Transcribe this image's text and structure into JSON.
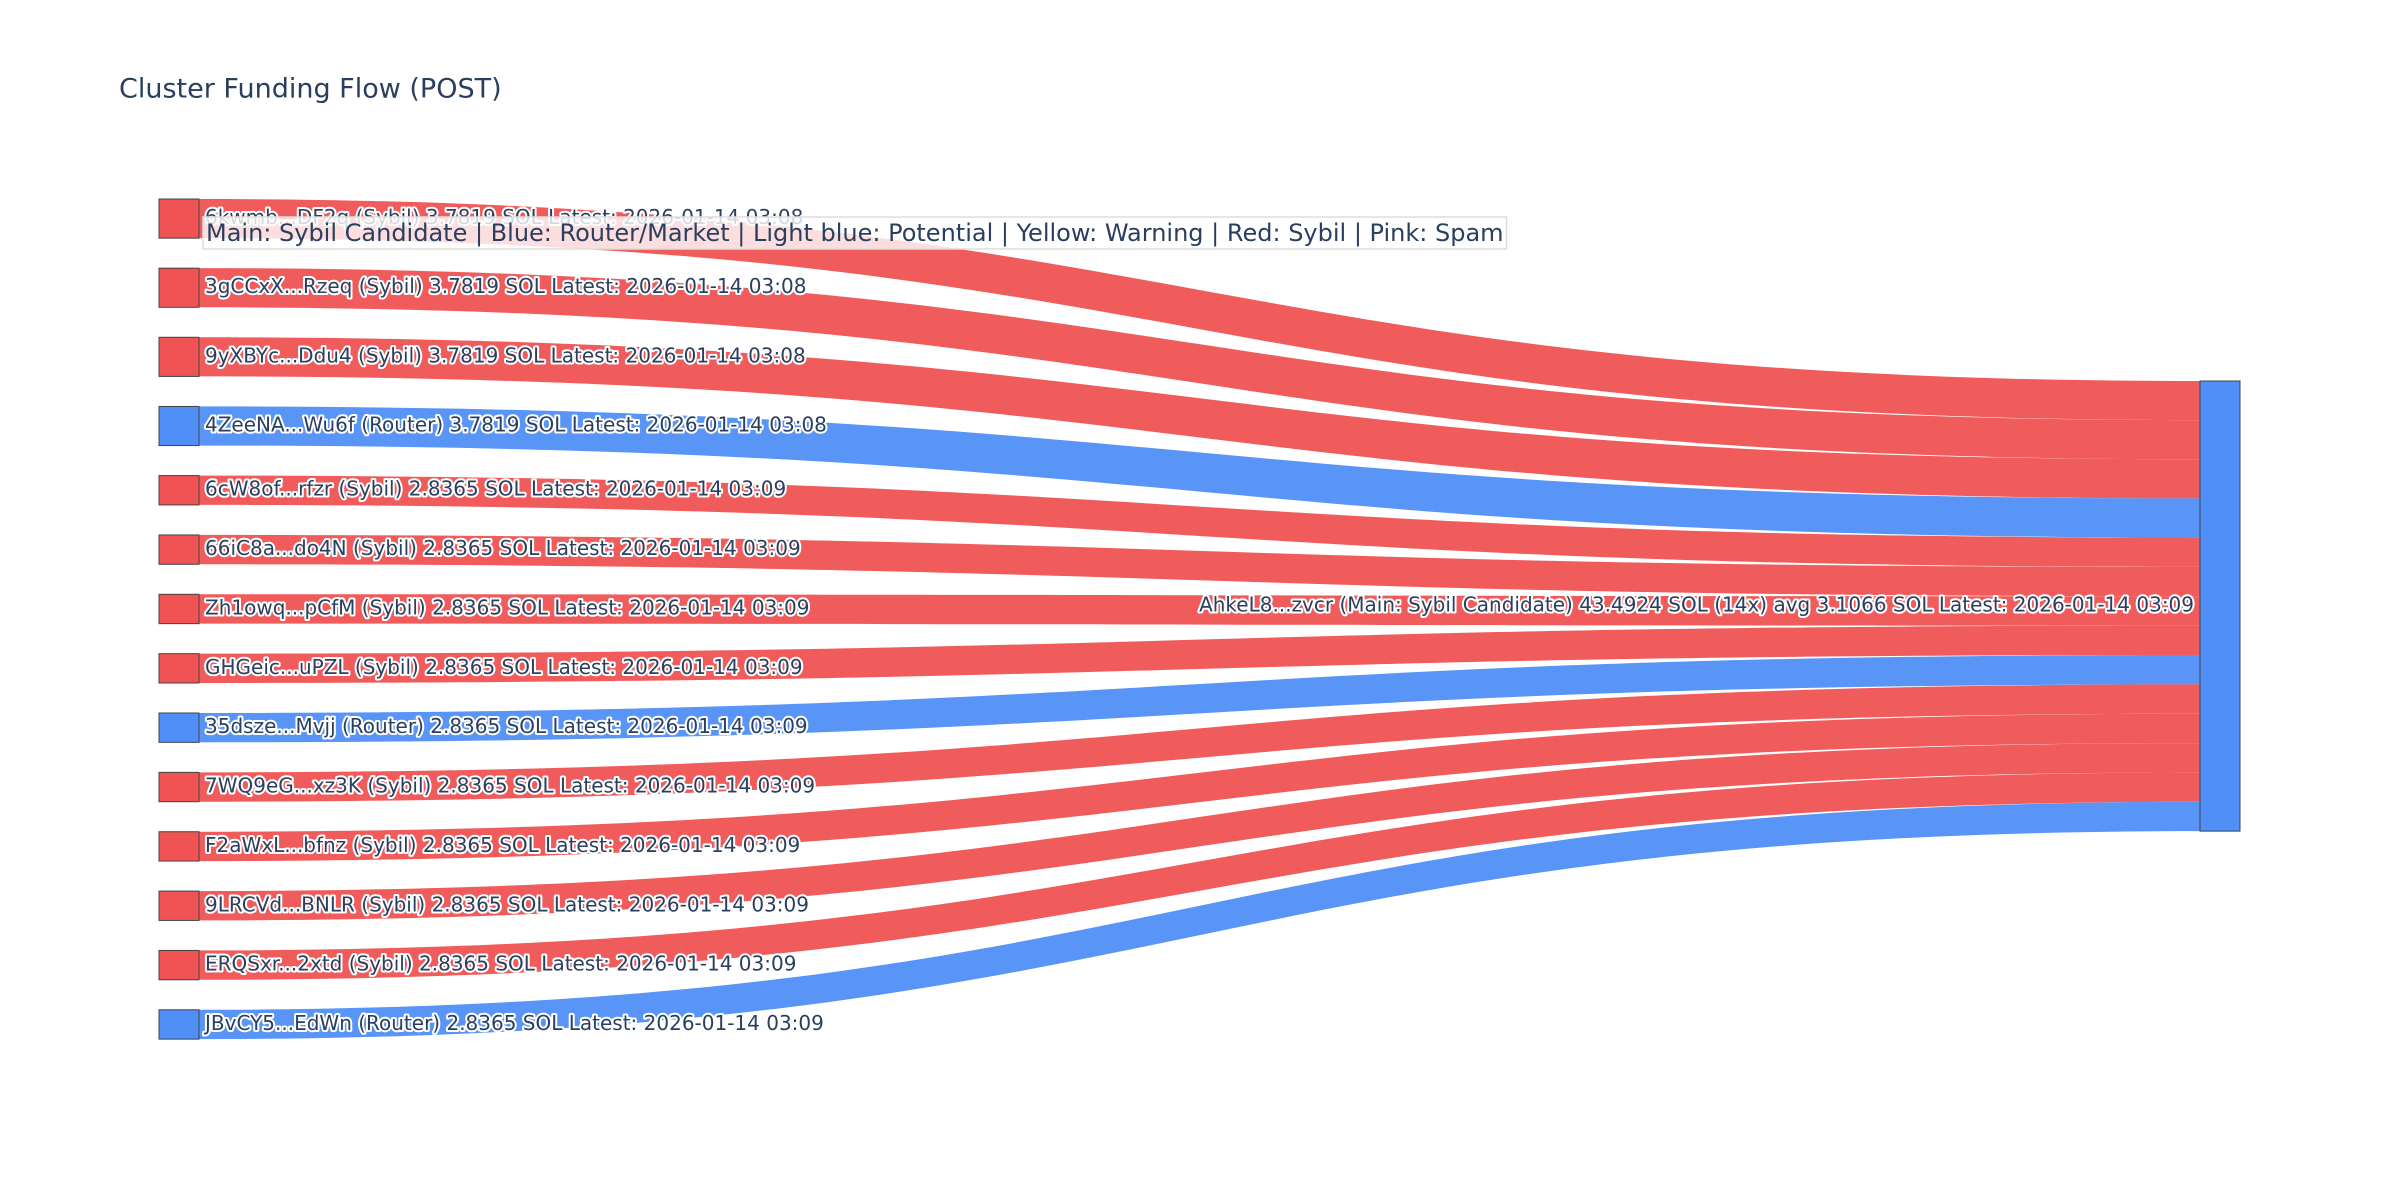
{
  "chart_data": {
    "type": "sankey",
    "title": "Cluster Funding Flow (POST)",
    "annotation": "Main: Sybil Candidate  |  Blue: Router/Market | Light blue: Potential | Yellow: Warning | Red: Sybil | Pink: Spam",
    "nodes": [
      {
        "label": "6kwmb...DF2q (Sybil) 3.7819 SOL Latest: 2026-01-14 03:08",
        "color": "#ef5353"
      },
      {
        "label": "3gCCxX...Rzeq (Sybil) 3.7819 SOL Latest: 2026-01-14 03:08",
        "color": "#ef5353"
      },
      {
        "label": "9yXBYc...Ddu4 (Sybil) 3.7819 SOL Latest: 2026-01-14 03:08",
        "color": "#ef5353"
      },
      {
        "label": "4ZeeNA...Wu6f (Router) 3.7819 SOL Latest: 2026-01-14 03:08",
        "color": "#4f8ff7"
      },
      {
        "label": "6cW8of...rfzr (Sybil) 2.8365 SOL Latest: 2026-01-14 03:09",
        "color": "#ef5353"
      },
      {
        "label": "66iC8a...do4N (Sybil) 2.8365 SOL Latest: 2026-01-14 03:09",
        "color": "#ef5353"
      },
      {
        "label": "Zh1owq...pCfM (Sybil) 2.8365 SOL Latest: 2026-01-14 03:09",
        "color": "#ef5353"
      },
      {
        "label": "GHGeic...uPZL (Sybil) 2.8365 SOL Latest: 2026-01-14 03:09",
        "color": "#ef5353"
      },
      {
        "label": "35dsze...Mvjj (Router) 2.8365 SOL Latest: 2026-01-14 03:09",
        "color": "#4f8ff7"
      },
      {
        "label": "7WQ9eG...xz3K (Sybil) 2.8365 SOL Latest: 2026-01-14 03:09",
        "color": "#ef5353"
      },
      {
        "label": "F2aWxL...bfnz (Sybil) 2.8365 SOL Latest: 2026-01-14 03:09",
        "color": "#ef5353"
      },
      {
        "label": "9LRCVd...BNLR (Sybil) 2.8365 SOL Latest: 2026-01-14 03:09",
        "color": "#ef5353"
      },
      {
        "label": "ERQSxr...2xtd (Sybil) 2.8365 SOL Latest: 2026-01-14 03:09",
        "color": "#ef5353"
      },
      {
        "label": "JBvCY5...EdWn (Router) 2.8365 SOL Latest: 2026-01-14 03:09",
        "color": "#4f8ff7"
      },
      {
        "label": "AhkeL8...zvcr (Main: Sybil Candidate) 43.4924 SOL (14x) avg 3.1066 SOL Latest: 2026-01-14 03:09",
        "color": "#4f8ff7"
      }
    ],
    "links": [
      {
        "source": 0,
        "target": 14,
        "value": 3.7819,
        "color": "#ef5353"
      },
      {
        "source": 1,
        "target": 14,
        "value": 3.7819,
        "color": "#ef5353"
      },
      {
        "source": 2,
        "target": 14,
        "value": 3.7819,
        "color": "#ef5353"
      },
      {
        "source": 3,
        "target": 14,
        "value": 3.7819,
        "color": "#4f8ff7"
      },
      {
        "source": 4,
        "target": 14,
        "value": 2.8365,
        "color": "#ef5353"
      },
      {
        "source": 5,
        "target": 14,
        "value": 2.8365,
        "color": "#ef5353"
      },
      {
        "source": 6,
        "target": 14,
        "value": 2.8365,
        "color": "#ef5353"
      },
      {
        "source": 7,
        "target": 14,
        "value": 2.8365,
        "color": "#ef5353"
      },
      {
        "source": 8,
        "target": 14,
        "value": 2.8365,
        "color": "#4f8ff7"
      },
      {
        "source": 9,
        "target": 14,
        "value": 2.8365,
        "color": "#ef5353"
      },
      {
        "source": 10,
        "target": 14,
        "value": 2.8365,
        "color": "#ef5353"
      },
      {
        "source": 11,
        "target": 14,
        "value": 2.8365,
        "color": "#ef5353"
      },
      {
        "source": 12,
        "target": 14,
        "value": 2.8365,
        "color": "#ef5353"
      },
      {
        "source": 13,
        "target": 14,
        "value": 2.8365,
        "color": "#4f8ff7"
      }
    ]
  }
}
